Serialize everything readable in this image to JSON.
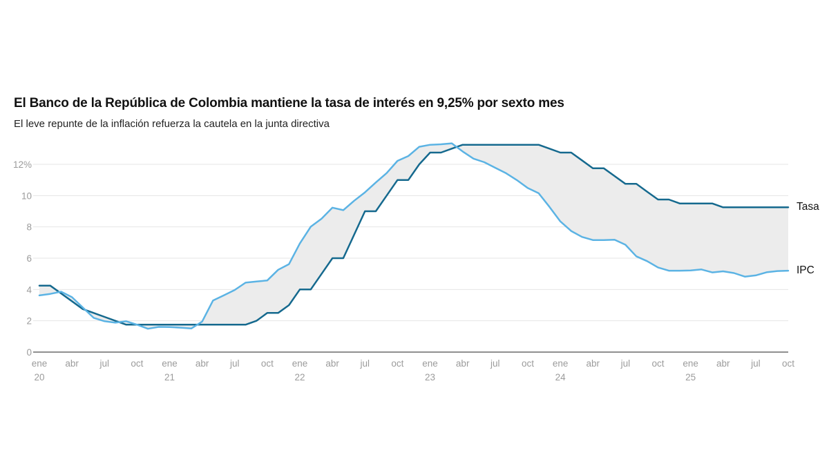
{
  "chart_data": {
    "type": "line",
    "title": "El Banco de la República de Colombia mantiene la tasa de interés en 9,25% por sexto mes",
    "subtitle": "El leve repunte de la inflación refuerza la cautela en la junta directiva",
    "x_start": "ene 20",
    "x_end": "oct 25",
    "x_step": "1 month",
    "grid": "horizontal-only",
    "legend_position": "right-of-line-ends",
    "ylim": [
      0,
      13.6
    ],
    "y_ticks": [
      {
        "value": 0,
        "label": "0"
      },
      {
        "value": 2,
        "label": "2"
      },
      {
        "value": 4,
        "label": "4"
      },
      {
        "value": 6,
        "label": "6"
      },
      {
        "value": 8,
        "label": "8"
      },
      {
        "value": 10,
        "label": "10"
      },
      {
        "value": 12,
        "label": "12%"
      }
    ],
    "x_ticks": [
      {
        "label": "ene",
        "year": "20"
      },
      {
        "label": "abr"
      },
      {
        "label": "jul"
      },
      {
        "label": "oct"
      },
      {
        "label": "ene",
        "year": "21"
      },
      {
        "label": "abr"
      },
      {
        "label": "jul"
      },
      {
        "label": "oct"
      },
      {
        "label": "ene",
        "year": "22"
      },
      {
        "label": "abr"
      },
      {
        "label": "jul"
      },
      {
        "label": "oct"
      },
      {
        "label": "ene",
        "year": "23"
      },
      {
        "label": "abr"
      },
      {
        "label": "jul"
      },
      {
        "label": "oct"
      },
      {
        "label": "ene",
        "year": "24"
      },
      {
        "label": "abr"
      },
      {
        "label": "jul"
      },
      {
        "label": "oct"
      },
      {
        "label": "ene",
        "year": "25"
      },
      {
        "label": "abr"
      },
      {
        "label": "jul"
      },
      {
        "label": "oct"
      }
    ],
    "series": [
      {
        "name": "Tasa",
        "color": "#15698e",
        "values": [
          4.25,
          4.25,
          3.75,
          3.25,
          2.75,
          2.5,
          2.25,
          2.0,
          1.75,
          1.75,
          1.75,
          1.75,
          1.75,
          1.75,
          1.75,
          1.75,
          1.75,
          1.75,
          1.75,
          1.75,
          2.0,
          2.5,
          2.5,
          3.0,
          4.0,
          4.0,
          5.0,
          6.0,
          6.0,
          7.5,
          9.0,
          9.0,
          10.0,
          11.0,
          11.0,
          12.0,
          12.75,
          12.75,
          13.0,
          13.25,
          13.25,
          13.25,
          13.25,
          13.25,
          13.25,
          13.25,
          13.25,
          13.0,
          12.75,
          12.75,
          12.25,
          11.75,
          11.75,
          11.25,
          10.75,
          10.75,
          10.25,
          9.75,
          9.75,
          9.5,
          9.5,
          9.5,
          9.5,
          9.25,
          9.25,
          9.25,
          9.25,
          9.25,
          9.25,
          9.25
        ]
      },
      {
        "name": "IPC",
        "color": "#5bb3e4",
        "values": [
          3.62,
          3.72,
          3.86,
          3.51,
          2.85,
          2.19,
          1.97,
          1.88,
          1.97,
          1.75,
          1.49,
          1.61,
          1.6,
          1.56,
          1.51,
          1.95,
          3.3,
          3.63,
          3.97,
          4.44,
          4.51,
          4.58,
          5.26,
          5.62,
          6.94,
          8.01,
          8.53,
          9.23,
          9.07,
          9.67,
          10.21,
          10.84,
          11.44,
          12.22,
          12.53,
          13.12,
          13.25,
          13.28,
          13.34,
          12.82,
          12.36,
          12.13,
          11.78,
          11.43,
          10.99,
          10.48,
          10.15,
          9.28,
          8.35,
          7.74,
          7.36,
          7.16,
          7.16,
          7.18,
          6.86,
          6.12,
          5.81,
          5.41,
          5.2,
          5.2,
          5.22,
          5.28,
          5.09,
          5.16,
          5.05,
          4.82,
          4.9,
          5.1,
          5.18,
          5.2
        ]
      }
    ],
    "colors": {
      "band_fill": "#ececec",
      "gridline": "#e4e4e4",
      "zero_line": "#8f8f8f",
      "axis_text": "#9b9b9b",
      "legend_text": "#111111"
    }
  }
}
